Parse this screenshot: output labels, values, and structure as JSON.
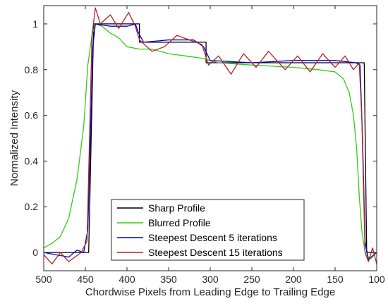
{
  "chart_data": {
    "type": "line",
    "title": "",
    "xlabel": "Chordwise Pixels from Leading Edge to Trailing Edge",
    "ylabel": "Normalized Intensity",
    "xlim": [
      500,
      100
    ],
    "ylim": [
      -0.08,
      1.08
    ],
    "x_reversed": true,
    "xticks": [
      500,
      450,
      400,
      350,
      300,
      250,
      200,
      150,
      100
    ],
    "yticks": [
      0,
      0.2,
      0.4,
      0.6,
      0.8,
      1
    ],
    "ytick_labels": [
      "0",
      "0.2",
      "0.4",
      "0.6",
      "0.8",
      "1"
    ],
    "grid": false,
    "legend_position": "bottom-center",
    "series": [
      {
        "name": "Sharp Profile",
        "color": "#000000",
        "points": [
          [
            500,
            0
          ],
          [
            446,
            0
          ],
          [
            440,
            1
          ],
          [
            385,
            1
          ],
          [
            385,
            0.92
          ],
          [
            305,
            0.92
          ],
          [
            305,
            0.83
          ],
          [
            115,
            0.83
          ],
          [
            112,
            0
          ],
          [
            100,
            0
          ]
        ]
      },
      {
        "name": "Blurred Profile",
        "color": "#33cc11",
        "points": [
          [
            500,
            0.02
          ],
          [
            490,
            0.04
          ],
          [
            480,
            0.07
          ],
          [
            470,
            0.15
          ],
          [
            460,
            0.32
          ],
          [
            452,
            0.55
          ],
          [
            447,
            0.82
          ],
          [
            442,
            0.95
          ],
          [
            438,
            1.0
          ],
          [
            430,
            0.99
          ],
          [
            420,
            0.96
          ],
          [
            410,
            0.94
          ],
          [
            400,
            0.9
          ],
          [
            385,
            0.89
          ],
          [
            370,
            0.89
          ],
          [
            350,
            0.87
          ],
          [
            330,
            0.86
          ],
          [
            310,
            0.85
          ],
          [
            290,
            0.83
          ],
          [
            250,
            0.82
          ],
          [
            200,
            0.81
          ],
          [
            170,
            0.8
          ],
          [
            150,
            0.79
          ],
          [
            140,
            0.76
          ],
          [
            133,
            0.7
          ],
          [
            128,
            0.6
          ],
          [
            124,
            0.45
          ],
          [
            121,
            0.25
          ],
          [
            118,
            0.1
          ],
          [
            114,
            0.0
          ],
          [
            108,
            -0.03
          ],
          [
            100,
            0.0
          ]
        ]
      },
      {
        "name": "Steepest Descent 5 iterations",
        "color": "#0000cc",
        "points": [
          [
            500,
            0.0
          ],
          [
            470,
            -0.02
          ],
          [
            460,
            0.01
          ],
          [
            452,
            0.0
          ],
          [
            447,
            0.1
          ],
          [
            444,
            0.5
          ],
          [
            441,
            0.9
          ],
          [
            438,
            1.0
          ],
          [
            420,
            0.99
          ],
          [
            400,
            0.99
          ],
          [
            390,
            1.0
          ],
          [
            386,
            0.96
          ],
          [
            380,
            0.92
          ],
          [
            350,
            0.93
          ],
          [
            320,
            0.93
          ],
          [
            308,
            0.9
          ],
          [
            300,
            0.84
          ],
          [
            250,
            0.83
          ],
          [
            200,
            0.84
          ],
          [
            150,
            0.84
          ],
          [
            125,
            0.83
          ],
          [
            120,
            0.82
          ],
          [
            117,
            0.5
          ],
          [
            114,
            0.05
          ],
          [
            110,
            -0.03
          ],
          [
            100,
            0.0
          ]
        ]
      },
      {
        "name": "Steepest Descent 15 iterations",
        "color": "#b22222",
        "points": [
          [
            500,
            -0.01
          ],
          [
            490,
            -0.05
          ],
          [
            480,
            0.0
          ],
          [
            470,
            -0.04
          ],
          [
            455,
            0.0
          ],
          [
            448,
            0.05
          ],
          [
            445,
            0.5
          ],
          [
            442,
            0.95
          ],
          [
            438,
            1.07
          ],
          [
            432,
            1.0
          ],
          [
            420,
            1.04
          ],
          [
            410,
            0.98
          ],
          [
            398,
            1.05
          ],
          [
            390,
            0.99
          ],
          [
            385,
            0.93
          ],
          [
            370,
            0.88
          ],
          [
            355,
            0.9
          ],
          [
            340,
            0.95
          ],
          [
            325,
            0.93
          ],
          [
            310,
            0.91
          ],
          [
            302,
            0.82
          ],
          [
            290,
            0.86
          ],
          [
            275,
            0.78
          ],
          [
            260,
            0.87
          ],
          [
            245,
            0.81
          ],
          [
            230,
            0.88
          ],
          [
            210,
            0.8
          ],
          [
            195,
            0.86
          ],
          [
            180,
            0.79
          ],
          [
            165,
            0.87
          ],
          [
            150,
            0.81
          ],
          [
            138,
            0.86
          ],
          [
            128,
            0.8
          ],
          [
            121,
            0.83
          ],
          [
            118,
            0.6
          ],
          [
            114,
            0.0
          ],
          [
            110,
            -0.04
          ],
          [
            105,
            0.02
          ],
          [
            100,
            -0.05
          ]
        ]
      }
    ]
  }
}
